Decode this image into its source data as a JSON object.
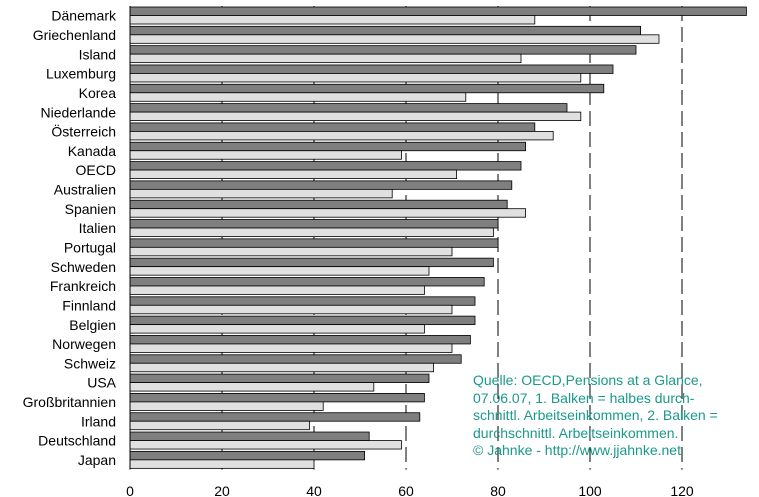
{
  "chart_data": {
    "type": "bar",
    "orientation": "horizontal",
    "categories": [
      "Dänemark",
      "Griechenland",
      "Island",
      "Luxemburg",
      "Korea",
      "Niederlande",
      "Österreich",
      "Kanada",
      "OECD",
      "Australien",
      "Spanien",
      "Italien",
      "Portugal",
      "Schweden",
      "Frankreich",
      "Finnland",
      "Belgien",
      "Norwegen",
      "Schweiz",
      "USA",
      "Großbritannien",
      "Irland",
      "Deutschland",
      "Japan"
    ],
    "series": [
      {
        "values": [
          134,
          111,
          110,
          105,
          103,
          95,
          88,
          86,
          85,
          83,
          82,
          80,
          80,
          79,
          77,
          75,
          75,
          74,
          72,
          65,
          64,
          63,
          52,
          51
        ],
        "color": "#7f7f7f"
      },
      {
        "values": [
          88,
          115,
          85,
          98,
          73,
          98,
          92,
          59,
          71,
          57,
          86,
          79,
          70,
          65,
          64,
          70,
          64,
          70,
          66,
          53,
          42,
          39,
          59,
          40
        ],
        "color": "#e0e0e0"
      }
    ],
    "xlim": [
      0,
      135
    ],
    "xticks": [
      0,
      20,
      40,
      60,
      80,
      100,
      120
    ],
    "grid": "dashed vertical",
    "annotation": [
      "Quelle: OECD,Pensions at a Glance,",
      "07.06.07, 1. Balken = halbes durch-",
      "schnittl. Arbeitseinkommen, 2. Balken =",
      "durchschnittl. Arbeitseinkommen.",
      "© Jahnke - http://www.jjahnke.net"
    ],
    "annotation_color": "#1a9a8a"
  }
}
